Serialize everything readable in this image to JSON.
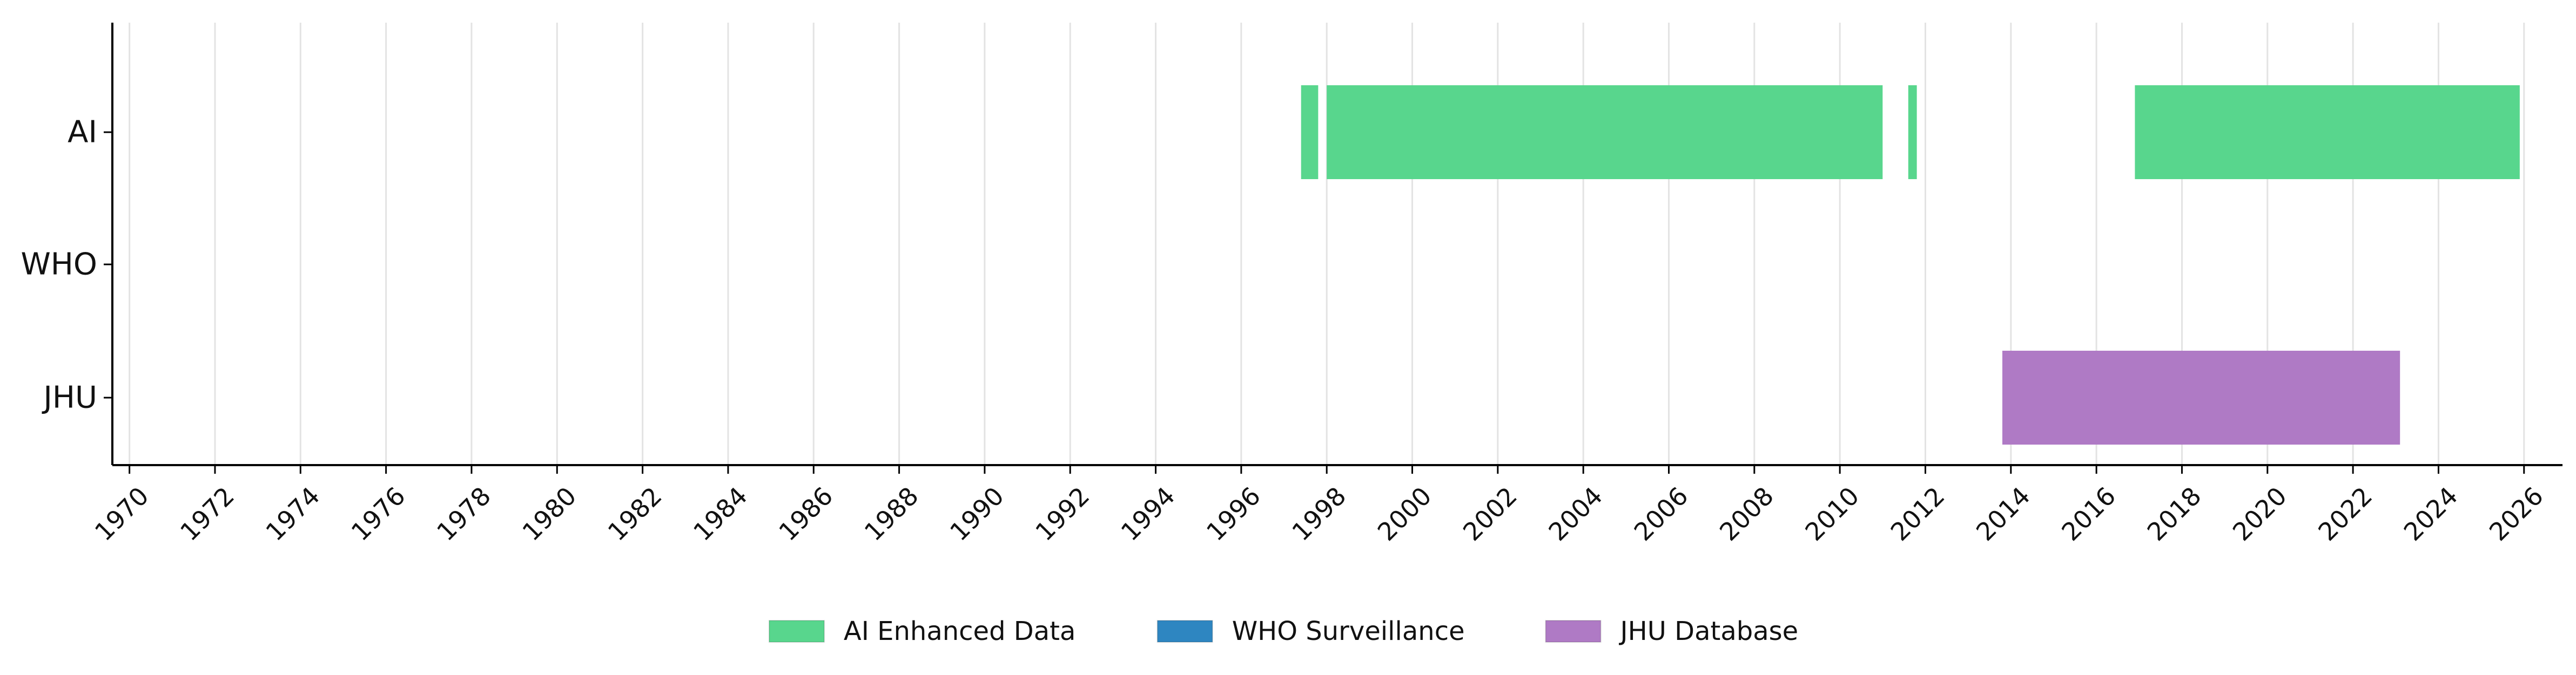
{
  "chart_data": {
    "type": "timeline",
    "title": "",
    "xlabel": "",
    "ylabel": "",
    "xlim": [
      1969.6,
      2026.9
    ],
    "x_ticks": [
      "1970",
      "1972",
      "1974",
      "1976",
      "1978",
      "1980",
      "1982",
      "1984",
      "1986",
      "1988",
      "1990",
      "1992",
      "1994",
      "1996",
      "1998",
      "2000",
      "2002",
      "2004",
      "2006",
      "2008",
      "2010",
      "2012",
      "2014",
      "2016",
      "2018",
      "2020",
      "2022",
      "2024",
      "2026"
    ],
    "grid": true,
    "categories": [
      "AI",
      "WHO",
      "JHU"
    ],
    "series": [
      {
        "name": "AI Enhanced Data",
        "row": "AI",
        "color": "#58d68d",
        "segments": [
          [
            1997.4,
            1997.8
          ],
          [
            1998.0,
            2011.0
          ],
          [
            2011.6,
            2011.8
          ],
          [
            2016.9,
            2025.9
          ]
        ]
      },
      {
        "name": "WHO Surveillance",
        "row": "WHO",
        "color": "#2e86c1",
        "segments": []
      },
      {
        "name": "JHU Database",
        "row": "JHU",
        "color": "#af7ac5",
        "segments": [
          [
            2013.8,
            2023.1
          ]
        ]
      }
    ],
    "legend": {
      "position": "bottom-center",
      "entries": [
        {
          "label": "AI Enhanced Data",
          "color": "#58d68d"
        },
        {
          "label": "WHO Surveillance",
          "color": "#2e86c1"
        },
        {
          "label": "JHU Database",
          "color": "#af7ac5"
        }
      ]
    }
  }
}
